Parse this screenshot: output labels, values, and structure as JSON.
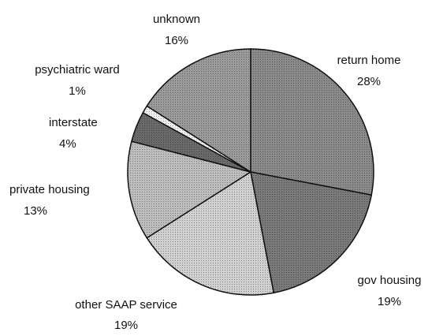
{
  "chart_data": {
    "type": "pie",
    "categories": [
      "return home",
      "gov housing",
      "other SAAP service",
      "private housing",
      "interstate",
      "psychiatric ward",
      "unknown"
    ],
    "values": [
      28,
      19,
      19,
      13,
      4,
      1,
      16
    ],
    "value_labels": [
      "28%",
      "19%",
      "19%",
      "13%",
      "4%",
      "1%",
      "16%"
    ],
    "colors": [
      "#8a8a8a",
      "#7a7a7a",
      "#d0d0d0",
      "#bdbdbd",
      "#6a6a6a",
      "#efefef",
      "#9a9a9a"
    ]
  }
}
